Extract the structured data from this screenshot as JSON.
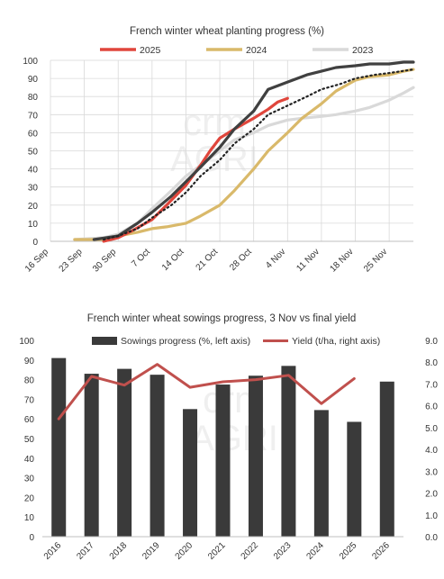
{
  "watermark": {
    "line1": "crm",
    "line2": "AGRI"
  },
  "chart_data": [
    {
      "type": "line",
      "title": "French winter wheat planting progress (%)",
      "legend_position": "top",
      "x_tick_labels": [
        "16 Sep",
        "23 Sep",
        "30 Sep",
        "7 Oct",
        "14 Oct",
        "21 Oct",
        "28 Oct",
        "4 Nov",
        "11 Nov",
        "18 Nov",
        "25 Nov"
      ],
      "x_range": [
        "16 Sep",
        "30 Nov"
      ],
      "ylim": [
        0,
        100
      ],
      "y_ticks": [
        0,
        10,
        20,
        30,
        40,
        50,
        60,
        70,
        80,
        90,
        100
      ],
      "grid": true,
      "series": [
        {
          "name": "2025",
          "color": "#e0463c",
          "style": "solid",
          "points": [
            [
              "27 Sep",
              0
            ],
            [
              "30 Sep",
              2
            ],
            [
              "3 Oct",
              6
            ],
            [
              "7 Oct",
              12
            ],
            [
              "10 Oct",
              20
            ],
            [
              "14 Oct",
              31
            ],
            [
              "17 Oct",
              42
            ],
            [
              "19 Oct",
              50
            ],
            [
              "21 Oct",
              57
            ],
            [
              "24 Oct",
              62
            ],
            [
              "28 Oct",
              68
            ],
            [
              "31 Oct",
              73
            ],
            [
              "2 Nov",
              77
            ],
            [
              "4 Nov",
              79
            ]
          ]
        },
        {
          "name": "2024",
          "color": "#d9b96a",
          "style": "solid",
          "points": [
            [
              "21 Sep",
              1
            ],
            [
              "23 Sep",
              1
            ],
            [
              "27 Sep",
              1
            ],
            [
              "30 Sep",
              3
            ],
            [
              "4 Oct",
              5
            ],
            [
              "7 Oct",
              7
            ],
            [
              "10 Oct",
              8
            ],
            [
              "14 Oct",
              10
            ],
            [
              "17 Oct",
              14
            ],
            [
              "21 Oct",
              20
            ],
            [
              "24 Oct",
              28
            ],
            [
              "28 Oct",
              40
            ],
            [
              "31 Oct",
              50
            ],
            [
              "4 Nov",
              60
            ],
            [
              "7 Nov",
              68
            ],
            [
              "11 Nov",
              76
            ],
            [
              "14 Nov",
              83
            ],
            [
              "18 Nov",
              89
            ],
            [
              "21 Nov",
              91
            ],
            [
              "25 Nov",
              92
            ],
            [
              "28 Nov",
              94
            ],
            [
              "30 Nov",
              95
            ]
          ]
        },
        {
          "name": "2023",
          "color": "#d9d9d9",
          "style": "solid",
          "points": [
            [
              "21 Sep",
              1
            ],
            [
              "27 Sep",
              2
            ],
            [
              "30 Sep",
              4
            ],
            [
              "4 Oct",
              10
            ],
            [
              "7 Oct",
              18
            ],
            [
              "11 Oct",
              28
            ],
            [
              "14 Oct",
              36
            ],
            [
              "18 Oct",
              44
            ],
            [
              "21 Oct",
              50
            ],
            [
              "24 Oct",
              56
            ],
            [
              "28 Oct",
              60
            ],
            [
              "31 Oct",
              64
            ],
            [
              "4 Nov",
              67
            ],
            [
              "7 Nov",
              68
            ],
            [
              "11 Nov",
              69
            ],
            [
              "14 Nov",
              70
            ],
            [
              "18 Nov",
              72
            ],
            [
              "21 Nov",
              74
            ],
            [
              "25 Nov",
              78
            ],
            [
              "28 Nov",
              82
            ],
            [
              "30 Nov",
              85
            ]
          ]
        },
        {
          "color": "#404040",
          "style": "solid",
          "points": [
            [
              "25 Sep",
              1
            ],
            [
              "30 Sep",
              3
            ],
            [
              "4 Oct",
              10
            ],
            [
              "7 Oct",
              16
            ],
            [
              "11 Oct",
              25
            ],
            [
              "14 Oct",
              33
            ],
            [
              "17 Oct",
              41
            ],
            [
              "21 Oct",
              52
            ],
            [
              "24 Oct",
              62
            ],
            [
              "28 Oct",
              72
            ],
            [
              "31 Oct",
              84
            ],
            [
              "4 Nov",
              88
            ],
            [
              "8 Nov",
              92
            ],
            [
              "11 Nov",
              94
            ],
            [
              "14 Nov",
              96
            ],
            [
              "18 Nov",
              97
            ],
            [
              "21 Nov",
              98
            ],
            [
              "25 Nov",
              98
            ],
            [
              "28 Nov",
              99
            ],
            [
              "30 Nov",
              99
            ]
          ]
        },
        {
          "color": "#222222",
          "style": "dotted",
          "points": [
            [
              "27 Sep",
              1
            ],
            [
              "30 Sep",
              3
            ],
            [
              "4 Oct",
              7
            ],
            [
              "7 Oct",
              13
            ],
            [
              "11 Oct",
              20
            ],
            [
              "14 Oct",
              27
            ],
            [
              "17 Oct",
              36
            ],
            [
              "21 Oct",
              45
            ],
            [
              "24 Oct",
              54
            ],
            [
              "28 Oct",
              62
            ],
            [
              "31 Oct",
              70
            ],
            [
              "4 Nov",
              75
            ],
            [
              "8 Nov",
              80
            ],
            [
              "11 Nov",
              84
            ],
            [
              "15 Nov",
              87
            ],
            [
              "18 Nov",
              90
            ],
            [
              "22 Nov",
              92
            ],
            [
              "25 Nov",
              93
            ],
            [
              "30 Nov",
              95
            ]
          ]
        }
      ]
    },
    {
      "type": "bar",
      "title": "French winter wheat sowings progress, 3 Nov vs final yield",
      "legend_position": "top",
      "categories": [
        "2016",
        "2017",
        "2018",
        "2019",
        "2020",
        "2021",
        "2022",
        "2023",
        "2024",
        "2025",
        "2026"
      ],
      "ylim_left": [
        0,
        100
      ],
      "y_ticks_left": [
        0,
        10,
        20,
        30,
        40,
        50,
        60,
        70,
        80,
        90,
        100
      ],
      "ylim_right": [
        0,
        9
      ],
      "y_ticks_right": [
        "0.0",
        "1.0",
        "2.0",
        "3.0",
        "4.0",
        "5.0",
        "6.0",
        "7.0",
        "8.0",
        "9.0"
      ],
      "grid": false,
      "series": [
        {
          "name": "Sowings progress (%, left axis)",
          "type": "bar",
          "axis": "left",
          "color": "#3a3a3a",
          "values": [
            91,
            83,
            85.5,
            82.5,
            65,
            77.5,
            82,
            87,
            64.5,
            58.5,
            79
          ]
        },
        {
          "name": "Yield (t/ha, right axis)",
          "type": "line",
          "axis": "right",
          "color": "#c0504d",
          "values": [
            5.4,
            7.35,
            6.95,
            7.9,
            6.85,
            7.1,
            7.2,
            7.4,
            6.1,
            7.25,
            null
          ]
        }
      ]
    }
  ]
}
